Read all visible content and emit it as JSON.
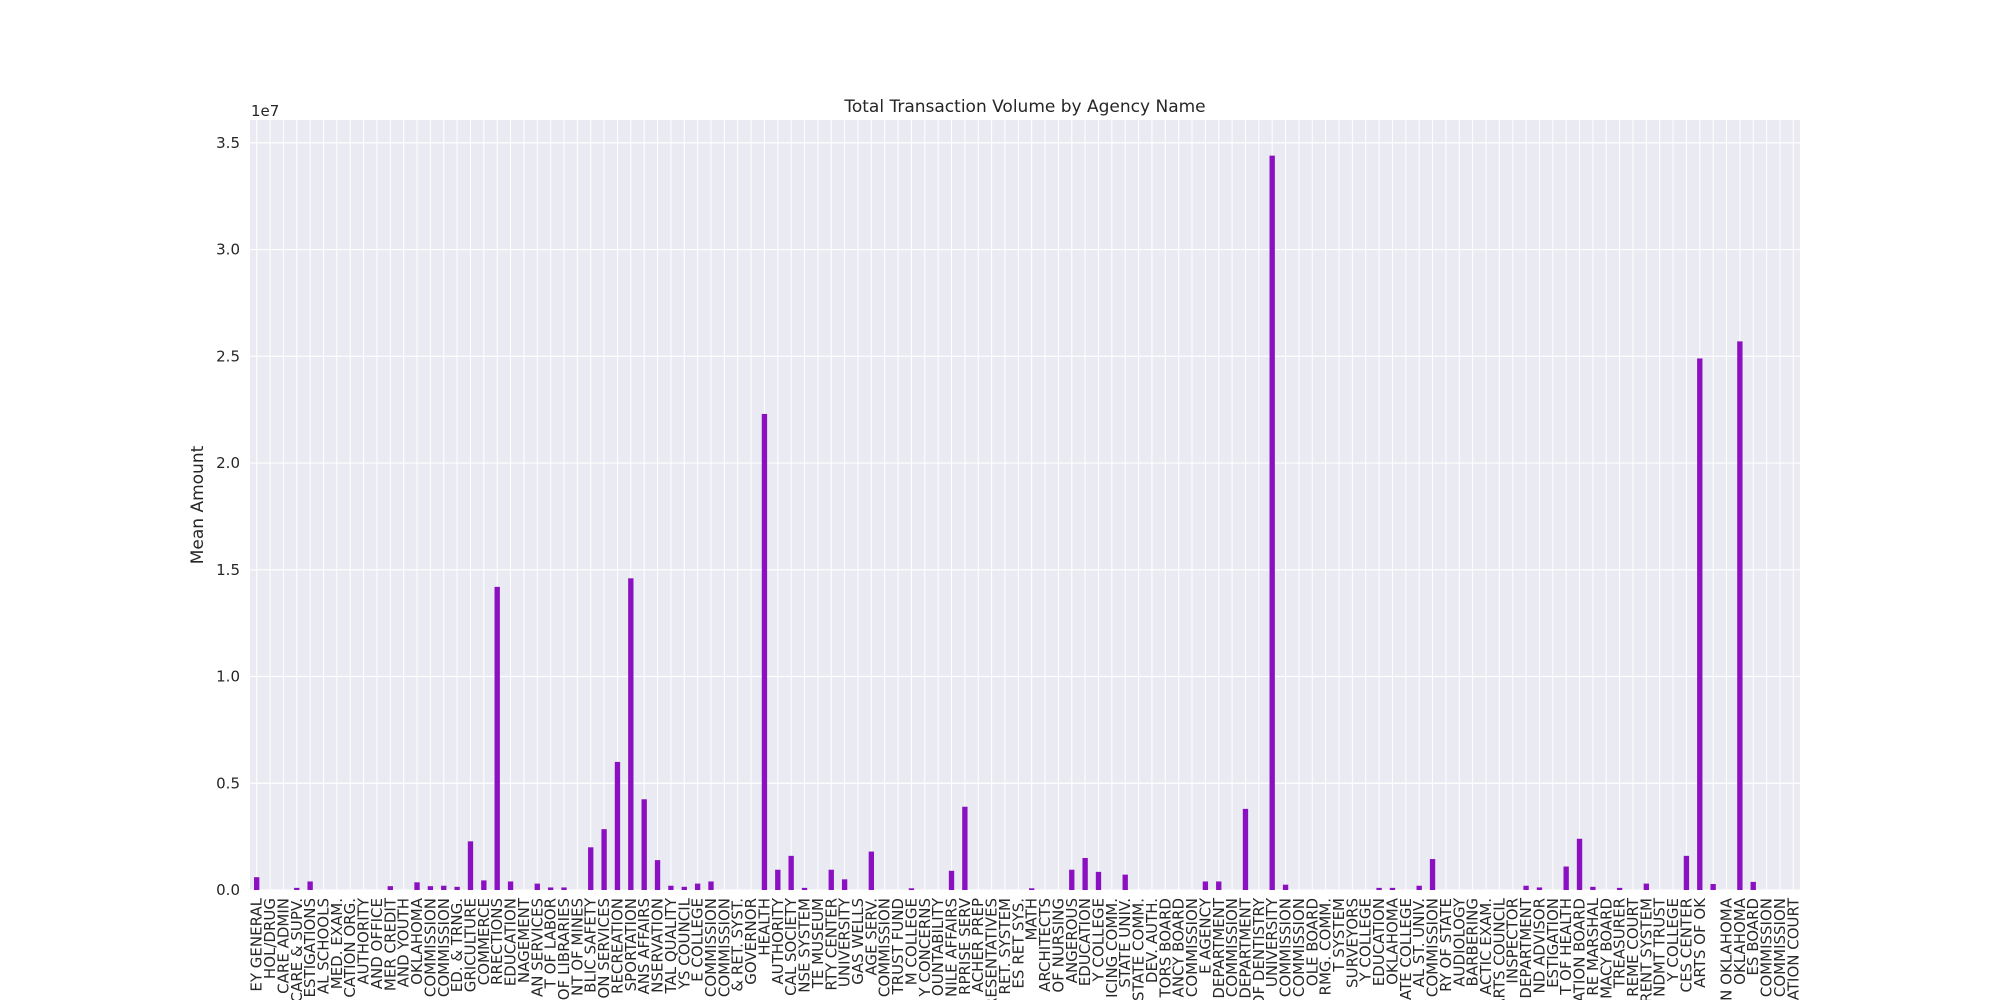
{
  "chart_data": {
    "type": "bar",
    "title": "Total Transaction Volume by Agency Name",
    "ylabel": "Mean Amount",
    "y_offset_label": "1e7",
    "categories": [
      "EY GENERAL",
      "HOL/DRUG",
      "CARE ADMIN",
      "CARE & SUPV.",
      "ESTIGATIONS",
      "AL SCHOOLS",
      "MED. EXAM.",
      "CATION ORG.",
      "AUTHORITY",
      "AND OFFICE",
      "MER CREDIT",
      "AND YOUTH",
      "OKLAHOMA",
      "COMMISSION",
      "COMMISSION",
      "ED. & TRNG.",
      "GRICULTURE",
      "COMMERCE",
      "RRECTIONS",
      "EDUCATION",
      "NAGEMENT",
      "AN SERVICES",
      "T OF LABOR",
      "OF LIBRARIES",
      "NT OF MINES",
      "BLIC SAFETY",
      "ON SERVICES",
      "RECREATION",
      "SPORTATION",
      "ANS AFFAIRS",
      "NSERVATION",
      "TAL QUALITY",
      "YS COUNCIL",
      "E COLLEGE",
      "COMMISSION",
      "COMMISSION",
      "& RET. SYST.",
      "GOVERNOR",
      "HEALTH",
      "AUTHORITY",
      "CAL SOCIETY",
      "NSE SYSTEM",
      "TE MUSEUM",
      "RTY CENTER",
      "UNIVERSITY",
      "GAS WELLS",
      "AGE SERV.",
      "COMMISSION",
      "TRUST FUND",
      "M COLLEGE",
      "Y CONCERNS",
      "OUNTABILITY",
      "NILE AFFAIRS",
      "RPRISE SERV",
      "ACHER PREP",
      "RESENTATIVES",
      "RET. SYSTEM",
      "ES RET SYS.",
      "MATH",
      "ARCHITECTS",
      "OF NURSING",
      "ANGEROUS",
      "EDUCATION",
      "Y COLLEGE",
      "ICING COMM.",
      "STATE UNIV.",
      "STATE COMM.",
      "DEV. AUTH.",
      "TORS BOARD",
      "ANCY BOARD",
      "COMMISSION",
      "E AGENCY",
      "DEPARTMENT",
      "COMMISSION",
      "DEPARTMENT",
      "OF DENTISTRY",
      "UNIVERSITY",
      "COMMISSION",
      "COMMISSION",
      "OLE BOARD",
      "RMG. COMM.",
      "T SYSTEM",
      "SURVEYORS",
      "Y COLLEGE",
      "EDUCATION",
      "OKLAHOMA",
      "ATE COLLEGE",
      "AL ST. UNIV.",
      "COMMISSION",
      "RY OF STATE",
      "AUDIOLOGY",
      "BARBERING",
      "ACTIC EXAM.",
      "ARTS COUNCIL",
      "INSPECTOR",
      "DEPARTMENT",
      "ND ADVISOR",
      "ESTIGATION",
      "T OF HEALTH",
      "ATION BOARD",
      "RE MARSHAL",
      "MACY BOARD",
      "TREASURER",
      "REME COURT",
      "RENT SYSTEM",
      "NDMT TRUST",
      "Y COLLEGE",
      "CES CENTER",
      "ARTS OF OK",
      null,
      "N OKLAHOMA",
      "OKLAHOMA",
      "ES BOARD",
      "COMMISSION",
      "COMMISSION",
      "ATION COURT"
    ],
    "values": [
      600000,
      0,
      0,
      100000,
      400000,
      0,
      0,
      0,
      0,
      0,
      180000,
      0,
      360000,
      180000,
      200000,
      150000,
      2280000,
      450000,
      14200000,
      400000,
      0,
      300000,
      120000,
      120000,
      0,
      2000000,
      2850000,
      6000000,
      14600000,
      4250000,
      1400000,
      200000,
      150000,
      300000,
      400000,
      0,
      0,
      0,
      22300000,
      950000,
      1600000,
      100000,
      0,
      950000,
      500000,
      0,
      1800000,
      0,
      0,
      80000,
      0,
      0,
      900000,
      3900000,
      0,
      0,
      0,
      0,
      80000,
      0,
      0,
      950000,
      1500000,
      850000,
      0,
      720000,
      0,
      0,
      0,
      0,
      0,
      400000,
      400000,
      0,
      3800000,
      0,
      34400000,
      250000,
      0,
      0,
      0,
      0,
      0,
      0,
      100000,
      100000,
      0,
      200000,
      1450000,
      0,
      0,
      0,
      0,
      0,
      0,
      200000,
      120000,
      0,
      1100000,
      2400000,
      150000,
      0,
      100000,
      0,
      300000,
      0,
      0,
      1600000,
      24900000,
      280000,
      0,
      25700000,
      380000,
      0,
      0,
      0
    ],
    "color": "#8b10c2",
    "ylim": [
      0,
      36070000
    ],
    "yticks": [
      {
        "value": 0,
        "label": "0.0"
      },
      {
        "value": 5000000,
        "label": "0.5"
      },
      {
        "value": 10000000,
        "label": "1.0"
      },
      {
        "value": 15000000,
        "label": "1.5"
      },
      {
        "value": 20000000,
        "label": "2.0"
      },
      {
        "value": 25000000,
        "label": "2.5"
      },
      {
        "value": 30000000,
        "label": "3.0"
      },
      {
        "value": 35000000,
        "label": "3.5"
      }
    ],
    "grid": true
  }
}
